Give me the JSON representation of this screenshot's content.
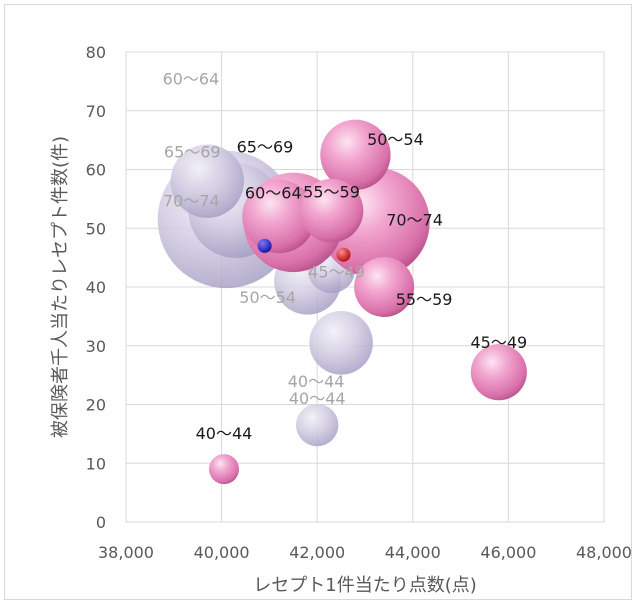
{
  "chart_data": {
    "type": "bubble",
    "title": "",
    "xlabel": "レセプト1件当たり点数(点)",
    "ylabel": "被保険者千人当たりレセプト件数(件)",
    "xlim": [
      38000,
      48000
    ],
    "ylim": [
      0,
      80
    ],
    "x_ticks": [
      "38,000",
      "40,000",
      "42,000",
      "44,000",
      "46,000",
      "48,000"
    ],
    "y_ticks": [
      "0",
      "10",
      "20",
      "30",
      "40",
      "50",
      "60",
      "70",
      "80"
    ],
    "grid": true,
    "colors": {
      "pink": "#e890c0",
      "pink_light": "#fbd6ea",
      "pink_dark": "#b04a84",
      "lavender": "#b9b2d2",
      "lavender_light": "#ece9f4",
      "lavender_dark": "#8f86b0",
      "label_dark": "#1a1a1a",
      "label_grey": "#a6a6a6",
      "marker_blue": "#1a1ad6",
      "marker_red": "#e01010"
    },
    "series": [
      {
        "color": "pink",
        "points": [
          {
            "label": "40〜44",
            "x": 40050,
            "y": 9,
            "size": 2
          },
          {
            "label": "45〜49",
            "x": 45800,
            "y": 25.5,
            "size": 7
          },
          {
            "label": "50〜54",
            "x": 42800,
            "y": 62.5,
            "size": 11
          },
          {
            "label": "55〜59",
            "x": 43400,
            "y": 40,
            "size": 8
          },
          {
            "label": "55〜59",
            "x": 42300,
            "y": 53,
            "size": 9
          },
          {
            "label": "60〜64",
            "x": 41500,
            "y": 51,
            "size": 22
          },
          {
            "label": "65〜69",
            "x": 41200,
            "y": 52,
            "size": 12
          },
          {
            "label": "70〜74",
            "x": 43200,
            "y": 51,
            "size": 27
          }
        ]
      },
      {
        "color": "lavender",
        "points": [
          {
            "label": "40〜44",
            "x": 42000,
            "y": 16.5,
            "size": 4
          },
          {
            "label": "40〜44",
            "x": 42500,
            "y": 30.5,
            "size": 9
          },
          {
            "label": "45〜49",
            "x": 42300,
            "y": 43,
            "size": 5
          },
          {
            "label": "50〜54",
            "x": 41800,
            "y": 41,
            "size": 10
          },
          {
            "label": "60〜64",
            "x": 40300,
            "y": 53,
            "size": 20
          },
          {
            "label": "65〜69",
            "x": 39700,
            "y": 58,
            "size": 12
          },
          {
            "label": "70〜74",
            "x": 40100,
            "y": 51.5,
            "size": 42
          }
        ]
      }
    ],
    "markers": [
      {
        "x": 40900,
        "y": 47,
        "color": "marker_blue"
      },
      {
        "x": 42550,
        "y": 45.5,
        "color": "marker_red"
      }
    ]
  }
}
